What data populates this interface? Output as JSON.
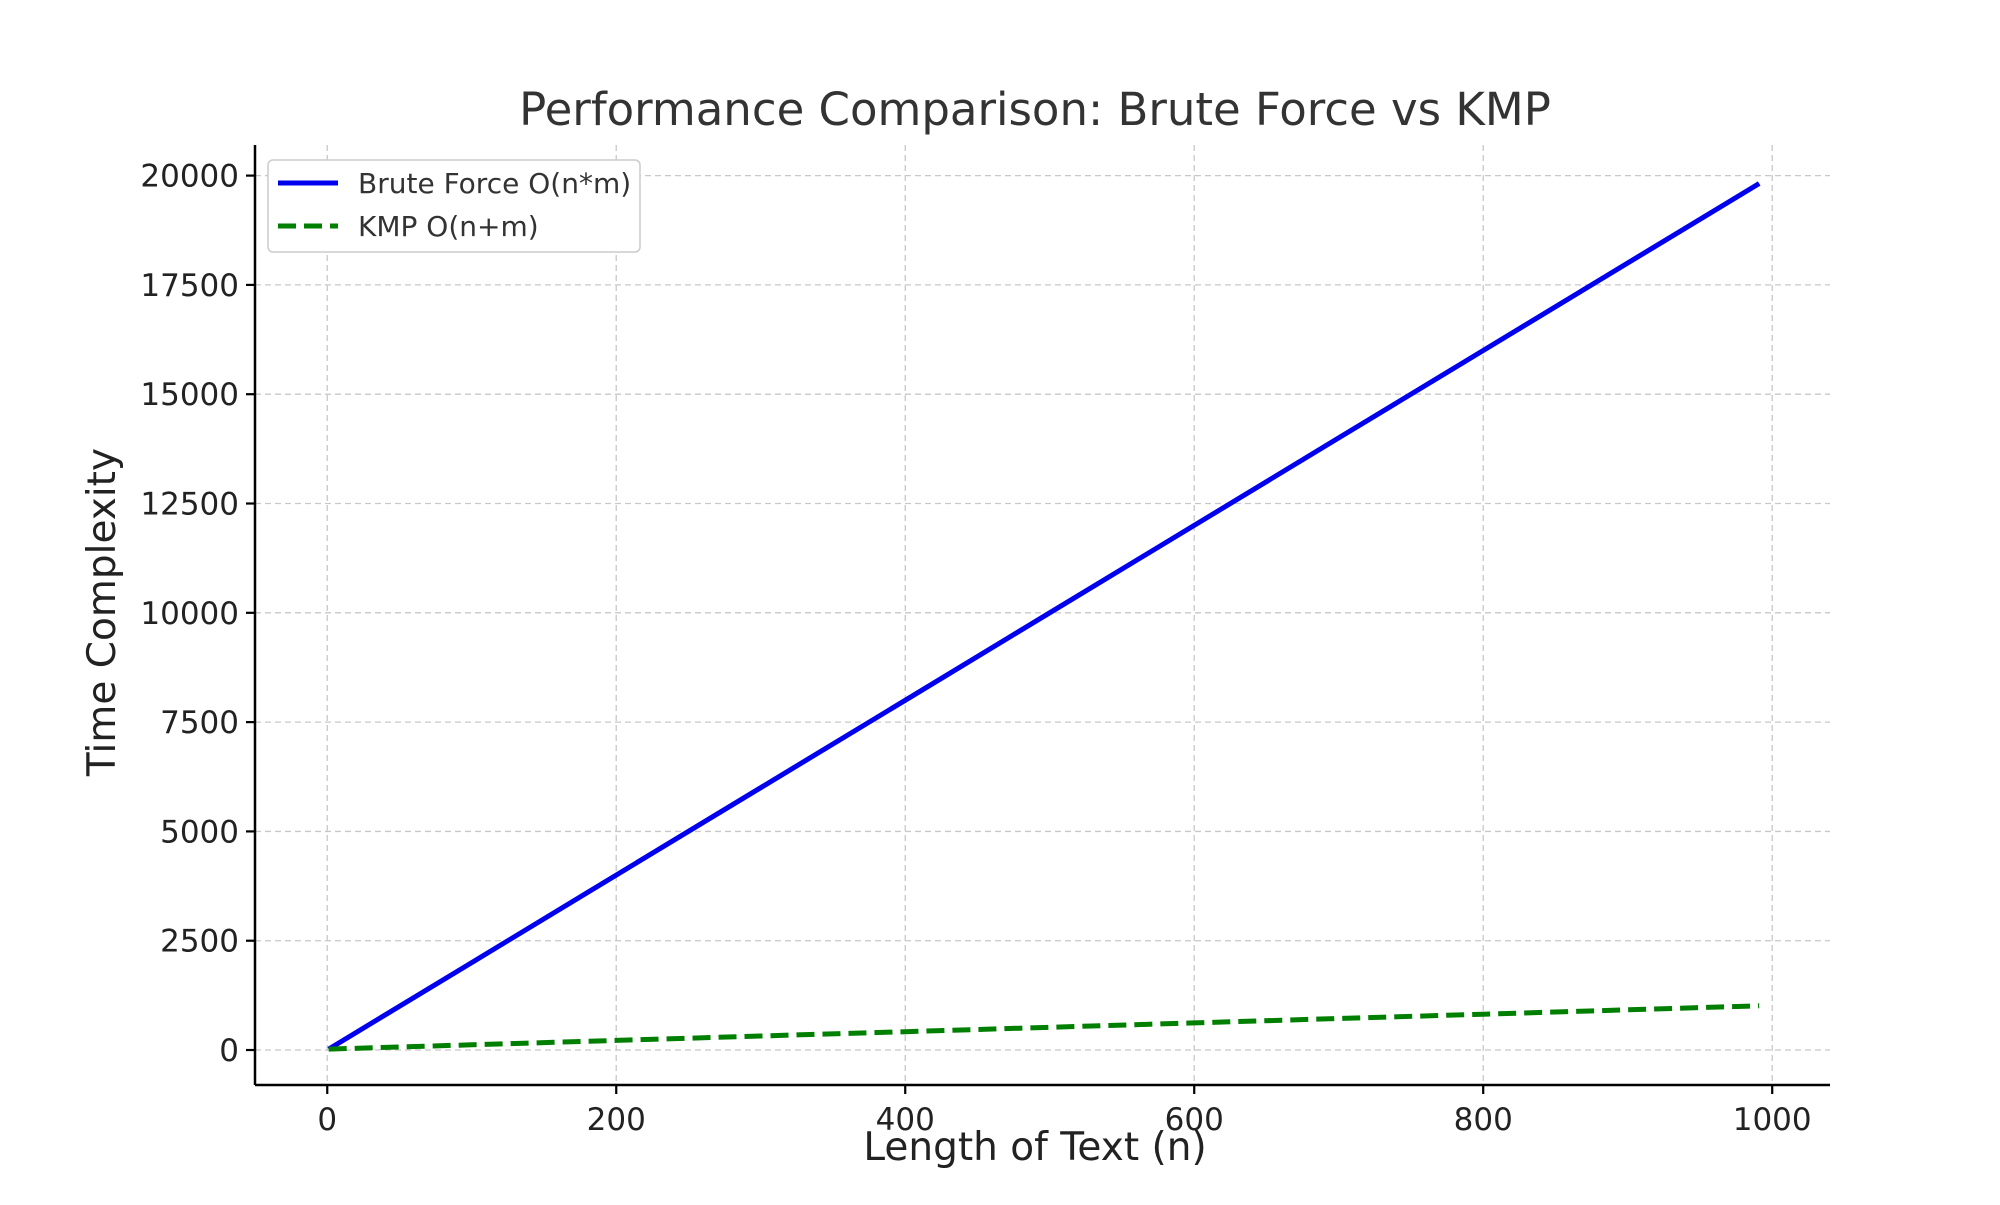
{
  "chart_data": {
    "type": "line",
    "title": "Performance Comparison: Brute Force vs KMP",
    "xlabel": "Length of Text (n)",
    "ylabel": "Time Complexity",
    "xlim": [
      -50,
      1040
    ],
    "ylim": [
      -800,
      20700
    ],
    "x_ticks": [
      0,
      200,
      400,
      600,
      800,
      1000
    ],
    "y_ticks": [
      0,
      2500,
      5000,
      7500,
      10000,
      12500,
      15000,
      17500,
      20000
    ],
    "grid": true,
    "legend_position": "top-left",
    "series": [
      {
        "name": "Brute Force O(n*m)",
        "color": "#0000ee",
        "style": "solid",
        "x": [
          1,
          100,
          200,
          300,
          400,
          500,
          600,
          700,
          800,
          900,
          991
        ],
        "y": [
          20,
          2000,
          4000,
          6000,
          8000,
          10000,
          12000,
          14000,
          16000,
          18000,
          19820
        ]
      },
      {
        "name": "KMP O(n+m)",
        "color": "#007f00",
        "style": "dashed",
        "x": [
          1,
          100,
          200,
          300,
          400,
          500,
          600,
          700,
          800,
          900,
          991
        ],
        "y": [
          21,
          120,
          220,
          320,
          420,
          520,
          620,
          720,
          820,
          920,
          1011
        ]
      }
    ]
  }
}
